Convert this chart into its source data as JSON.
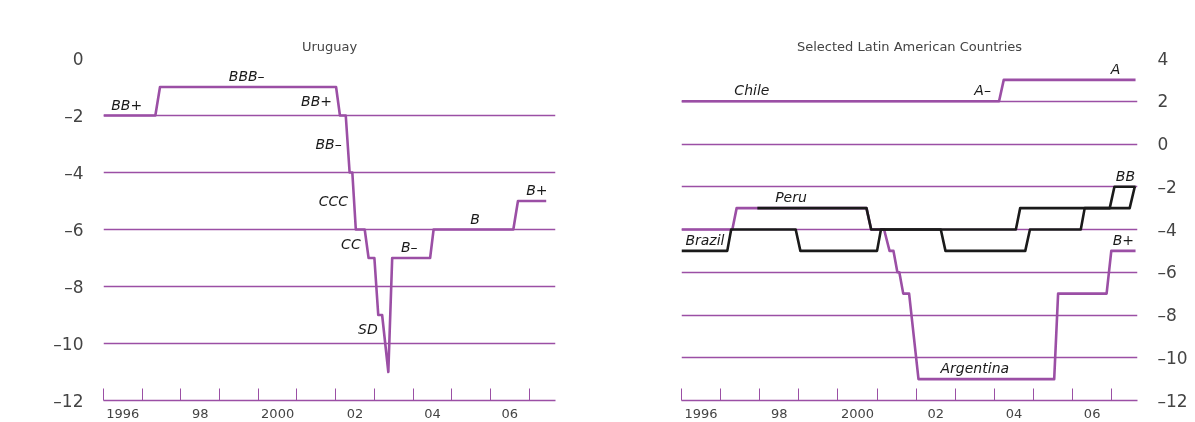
{
  "chart_data": [
    {
      "type": "line",
      "title": "Uruguay",
      "xlim": [
        1995.5,
        2007.18
      ],
      "ylim": [
        -12,
        0
      ],
      "grid": "y",
      "xticks": [
        {
          "value": 1995.5,
          "label": null
        },
        {
          "value": 1996.5,
          "label": null
        },
        {
          "value": 1997.5,
          "label": null
        },
        {
          "value": 1998.5,
          "label": null
        },
        {
          "value": 1999.5,
          "label": null
        },
        {
          "value": 2000.5,
          "label": null
        },
        {
          "value": 2001.5,
          "label": null
        },
        {
          "value": 2002.5,
          "label": null
        },
        {
          "value": 2003.5,
          "label": null
        },
        {
          "value": 2004.5,
          "label": null
        },
        {
          "value": 2005.5,
          "label": null
        },
        {
          "value": 2006.5,
          "label": null
        },
        {
          "value": 1996,
          "label": "1996"
        },
        {
          "value": 1998,
          "label": "98"
        },
        {
          "value": 2000,
          "label": "2000"
        },
        {
          "value": 2002,
          "label": "02"
        },
        {
          "value": 2004,
          "label": "04"
        },
        {
          "value": 2006,
          "label": "06"
        }
      ],
      "yticks": [
        {
          "value": 0,
          "label": "0"
        },
        {
          "value": -2,
          "label": "–2"
        },
        {
          "value": -4,
          "label": "–4"
        },
        {
          "value": -6,
          "label": "–6"
        },
        {
          "value": -8,
          "label": "–8"
        },
        {
          "value": -10,
          "label": "–10"
        },
        {
          "value": -12,
          "label": "–12"
        }
      ],
      "series": [
        {
          "color": "#9b4fa5",
          "x": [
            1995.5,
            1996.84,
            1996.96,
            2001.51,
            2001.61,
            2001.76,
            2001.86,
            2001.93,
            2002.02,
            2002.25,
            2002.35,
            2002.5,
            2002.6,
            2002.7,
            2002.86,
            2002.96,
            2003.94,
            2004.03,
            2006.09,
            2006.21,
            2006.94
          ],
          "values": [
            -2,
            -2,
            -1,
            -1,
            -2,
            -2,
            -4,
            -4,
            -6,
            -6,
            -7,
            -7,
            -9,
            -9,
            -11,
            -7,
            -7,
            -6,
            -6,
            -5,
            -5
          ]
        }
      ],
      "annotations": [
        {
          "text": "BB+",
          "x": 1996.1,
          "y": -2
        },
        {
          "text": "BBB–",
          "x": 1999.2,
          "y": -1
        },
        {
          "text": "BB+",
          "x": 2001.56,
          "y": -1.5
        },
        {
          "text": "BB–",
          "x": 2001.81,
          "y": -3
        },
        {
          "text": "CCC",
          "x": 2001.975,
          "y": -5
        },
        {
          "text": "CC",
          "x": 2002.3,
          "y": -6.5
        },
        {
          "text": "SD",
          "x": 2002.74,
          "y": -9.5
        },
        {
          "text": "B–",
          "x": 2003.4,
          "y": -7
        },
        {
          "text": "B",
          "x": 2005.1,
          "y": -6
        },
        {
          "text": "B+",
          "x": 2006.7,
          "y": -5
        }
      ]
    },
    {
      "type": "line",
      "title": "Selected Latin American Countries",
      "xlim": [
        1995.5,
        2007.16
      ],
      "ylim": [
        -12,
        4
      ],
      "grid": "y",
      "xticks": [
        {
          "value": 1995.5,
          "label": null
        },
        {
          "value": 1996.5,
          "label": null
        },
        {
          "value": 1997.5,
          "label": null
        },
        {
          "value": 1998.5,
          "label": null
        },
        {
          "value": 1999.5,
          "label": null
        },
        {
          "value": 2000.5,
          "label": null
        },
        {
          "value": 2001.5,
          "label": null
        },
        {
          "value": 2002.5,
          "label": null
        },
        {
          "value": 2003.5,
          "label": null
        },
        {
          "value": 2004.5,
          "label": null
        },
        {
          "value": 2005.5,
          "label": null
        },
        {
          "value": 2006.5,
          "label": null
        },
        {
          "value": 1996,
          "label": "1996"
        },
        {
          "value": 1998,
          "label": "98"
        },
        {
          "value": 2000,
          "label": "2000"
        },
        {
          "value": 2002,
          "label": "02"
        },
        {
          "value": 2004,
          "label": "04"
        },
        {
          "value": 2006,
          "label": "06"
        }
      ],
      "yticks": [
        {
          "value": 4,
          "label": "4"
        },
        {
          "value": 2,
          "label": "2"
        },
        {
          "value": 0,
          "label": "0"
        },
        {
          "value": -2,
          "label": "–2"
        },
        {
          "value": -4,
          "label": "–4"
        },
        {
          "value": -6,
          "label": "–6"
        },
        {
          "value": -8,
          "label": "–8"
        },
        {
          "value": -10,
          "label": "–10"
        },
        {
          "value": -12,
          "label": "–12"
        }
      ],
      "series": [
        {
          "color": "#9b4fa5",
          "x": [
            1995.5,
            2003.62,
            2003.74,
            2007.11
          ],
          "values": [
            2,
            2,
            3,
            3
          ]
        },
        {
          "color": "#9b4fa5",
          "x": [
            1995.5,
            1996.8,
            1996.91,
            2000.23,
            2000.35,
            2000.68,
            2000.82,
            2000.92,
            2001.02,
            2001.07,
            2001.17,
            2001.32,
            2001.56,
            2005.03,
            2005.13,
            2006.37,
            2006.49,
            2007.11
          ],
          "values": [
            -4,
            -4,
            -3,
            -3,
            -4,
            -4,
            -5,
            -5,
            -6,
            -6,
            -7,
            -7,
            -11,
            -11,
            -7,
            -7,
            -5,
            -5
          ]
        },
        {
          "color": "#1a1a1a",
          "x": [
            1995.5,
            1996.67,
            1996.77,
            1998.42,
            1998.54,
            2000.5,
            2000.6,
            2002.13,
            2002.25,
            2004.29,
            2004.41,
            2005.71,
            2005.81,
            2006.96,
            2007.09
          ],
          "values": [
            -5,
            -5,
            -4,
            -4,
            -5,
            -5,
            -4,
            -4,
            -5,
            -5,
            -4,
            -4,
            -3,
            -3,
            -2
          ]
        },
        {
          "color": "#1a1a1a",
          "x": [
            1997.44,
            2000.23,
            2000.35,
            2004.05,
            2004.16,
            2006.45,
            2006.57,
            2007.11
          ],
          "values": [
            -3,
            -3,
            -4,
            -4,
            -3,
            -3,
            -2,
            -2
          ]
        }
      ],
      "annotations": [
        {
          "text": "Chile",
          "x": 1997.3,
          "y": 2
        },
        {
          "text": "A–",
          "x": 2003.2,
          "y": 2
        },
        {
          "text": "A",
          "x": 2006.6,
          "y": 3
        },
        {
          "text": "Peru",
          "x": 1998.3,
          "y": -3
        },
        {
          "text": "Brazil",
          "x": 1996.1,
          "y": -5
        },
        {
          "text": "BB",
          "x": 2006.85,
          "y": -2
        },
        {
          "text": "B+",
          "x": 2006.8,
          "y": -5
        },
        {
          "text": "Argentina",
          "x": 2003.0,
          "y": -11
        }
      ]
    }
  ]
}
